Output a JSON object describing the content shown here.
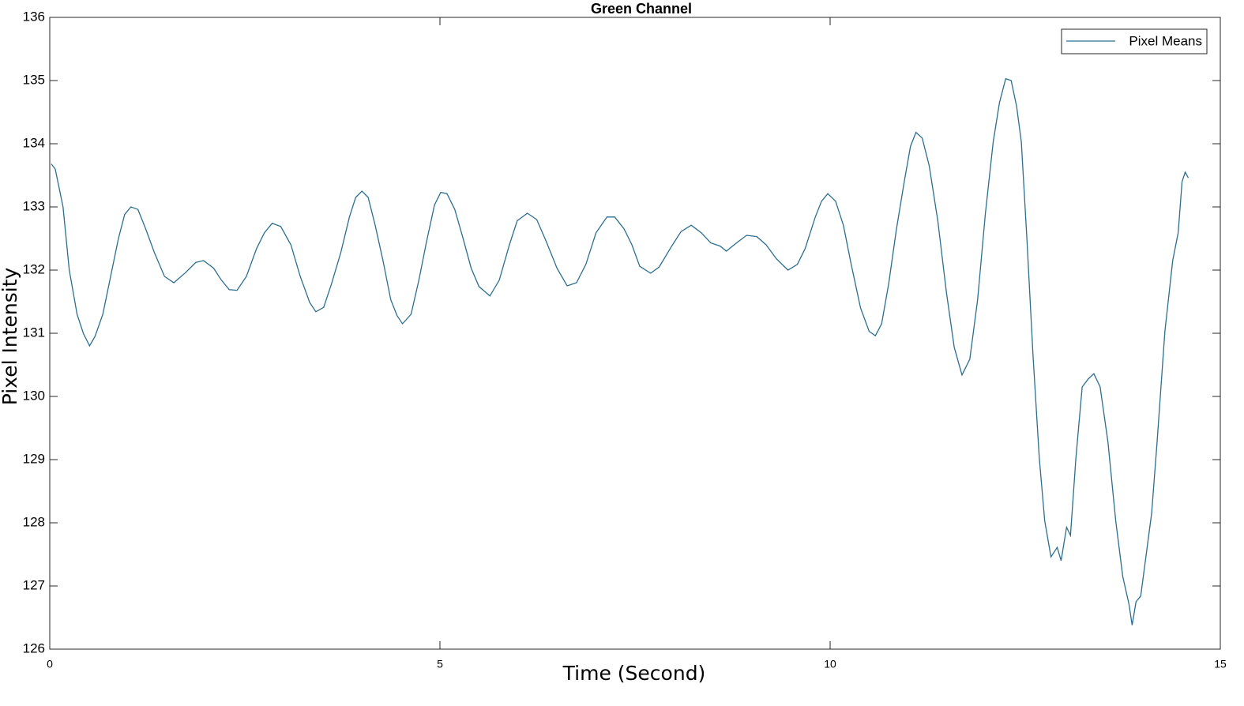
{
  "chart_data": {
    "type": "line",
    "title": "Green Channel",
    "x_label": "Time (Second)",
    "y_label": "Pixel Intensity",
    "xlim": [
      0,
      15
    ],
    "ylim": [
      126,
      136
    ],
    "xticks": [
      0,
      5,
      10,
      15
    ],
    "yticks": [
      126,
      127,
      128,
      129,
      130,
      131,
      132,
      133,
      134,
      135,
      136
    ],
    "grid": false,
    "legend": "upper right",
    "x": [
      0.02,
      0.07,
      0.17,
      0.25,
      0.35,
      0.43,
      0.51,
      0.58,
      0.68,
      0.78,
      0.88,
      0.96,
      1.04,
      1.13,
      1.23,
      1.34,
      1.47,
      1.59,
      1.74,
      1.87,
      1.97,
      2.1,
      2.2,
      2.3,
      2.4,
      2.52,
      2.65,
      2.75,
      2.85,
      2.96,
      3.09,
      3.21,
      3.33,
      3.41,
      3.51,
      3.61,
      3.73,
      3.84,
      3.92,
      4.0,
      4.08,
      4.17,
      4.27,
      4.37,
      4.45,
      4.52,
      4.63,
      4.73,
      4.83,
      4.93,
      5.01,
      5.09,
      5.19,
      5.29,
      5.4,
      5.5,
      5.64,
      5.76,
      5.89,
      5.99,
      6.12,
      6.24,
      6.36,
      6.5,
      6.63,
      6.75,
      6.87,
      7.0,
      7.14,
      7.24,
      7.36,
      7.46,
      7.56,
      7.7,
      7.81,
      7.97,
      8.09,
      8.22,
      8.35,
      8.47,
      8.59,
      8.67,
      8.8,
      8.93,
      9.06,
      9.18,
      9.31,
      9.46,
      9.58,
      9.68,
      9.81,
      9.89,
      9.97,
      10.07,
      10.17,
      10.27,
      10.39,
      10.5,
      10.58,
      10.66,
      10.75,
      10.85,
      10.95,
      11.03,
      11.1,
      11.18,
      11.27,
      11.38,
      11.49,
      11.59,
      11.69,
      11.79,
      11.89,
      11.99,
      12.09,
      12.17,
      12.25,
      12.32,
      12.39,
      12.45,
      12.52,
      12.6,
      12.68,
      12.75,
      12.83,
      12.91,
      12.96,
      13.03,
      13.08,
      13.15,
      13.23,
      13.31,
      13.38,
      13.46,
      13.56,
      13.66,
      13.75,
      13.83,
      13.87,
      13.92,
      13.98,
      14.04,
      14.12,
      14.19,
      14.29,
      14.39,
      14.46,
      14.51,
      14.55,
      14.59
    ],
    "series": [
      {
        "name": "Pixel Means",
        "color": "#2b6e8f",
        "values": [
          133.68,
          133.6,
          133.0,
          132.0,
          131.3,
          131.0,
          130.8,
          130.95,
          131.3,
          131.9,
          132.5,
          132.88,
          133.0,
          132.96,
          132.65,
          132.28,
          131.9,
          131.8,
          131.96,
          132.12,
          132.15,
          132.03,
          131.84,
          131.69,
          131.68,
          131.9,
          132.34,
          132.59,
          132.74,
          132.69,
          132.4,
          131.9,
          131.49,
          131.34,
          131.41,
          131.78,
          132.28,
          132.84,
          133.15,
          133.25,
          133.15,
          132.71,
          132.15,
          131.53,
          131.28,
          131.15,
          131.3,
          131.84,
          132.46,
          133.03,
          133.23,
          133.21,
          132.96,
          132.53,
          132.03,
          131.74,
          131.59,
          131.84,
          132.4,
          132.78,
          132.9,
          132.8,
          132.46,
          132.03,
          131.75,
          131.8,
          132.09,
          132.59,
          132.84,
          132.84,
          132.65,
          132.4,
          132.06,
          131.95,
          132.05,
          132.38,
          132.61,
          132.71,
          132.59,
          132.43,
          132.38,
          132.3,
          132.43,
          132.55,
          132.53,
          132.4,
          132.18,
          132.0,
          132.09,
          132.34,
          132.84,
          133.09,
          133.21,
          133.09,
          132.71,
          132.09,
          131.4,
          131.03,
          130.96,
          131.15,
          131.78,
          132.65,
          133.4,
          133.96,
          134.18,
          134.09,
          133.65,
          132.78,
          131.65,
          130.78,
          130.34,
          130.59,
          131.53,
          132.9,
          134.03,
          134.65,
          135.03,
          135.0,
          134.59,
          134.03,
          132.53,
          130.65,
          129.03,
          128.03,
          127.46,
          127.61,
          127.4,
          127.93,
          127.8,
          129.03,
          130.15,
          130.28,
          130.36,
          130.15,
          129.28,
          128.03,
          127.15,
          126.71,
          126.38,
          126.75,
          126.84,
          127.4,
          128.15,
          129.28,
          131.03,
          132.15,
          132.59,
          133.4,
          133.55,
          133.46
        ]
      }
    ]
  }
}
